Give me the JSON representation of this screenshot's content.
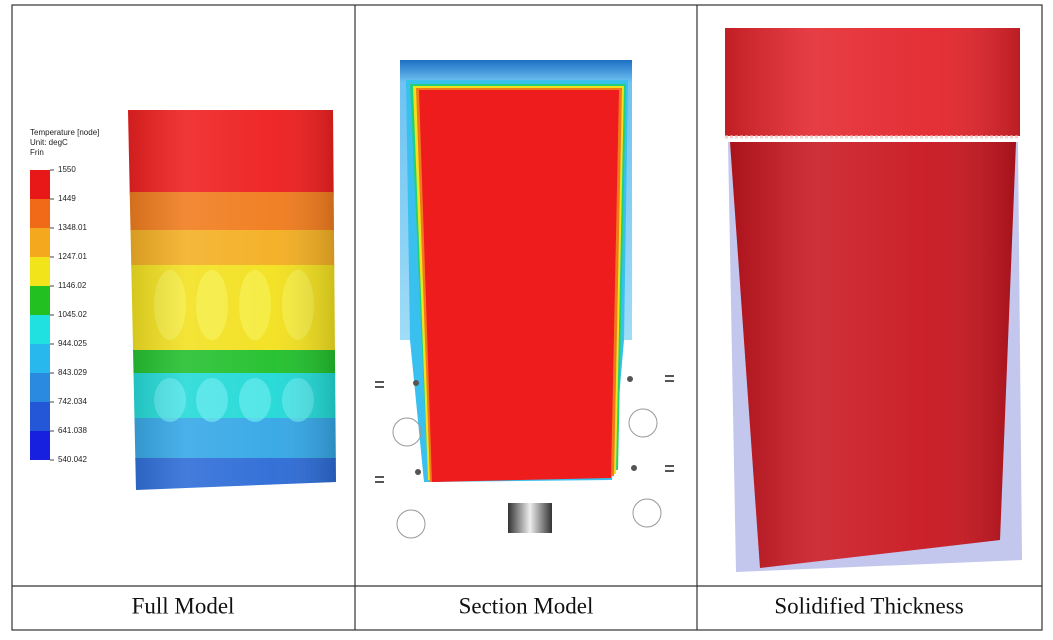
{
  "legend": {
    "title": "Temperature [node]",
    "unit": "Unit: degC",
    "label": "Frin",
    "labels": [
      "1550",
      "1449",
      "1348.01",
      "1247.01",
      "1146.02",
      "1045.02",
      "944.025",
      "843.029",
      "742.034",
      "641.038",
      "540.042"
    ]
  },
  "captions": [
    "Full Model",
    "Section Model",
    "Solidified Thickness"
  ]
}
